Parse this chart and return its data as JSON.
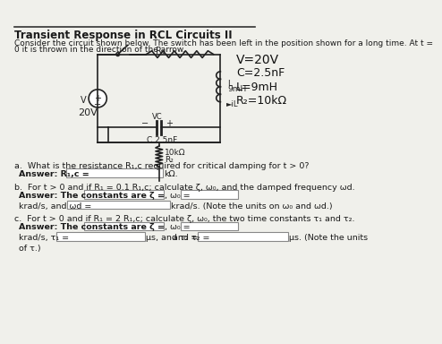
{
  "title": "Transient Response in RCL Circuits II",
  "intro_text": "Consider the circuit shown below. The switch has been left in the position shown for a long time. At t =\n0 it is thrown in the direction of the arrow.",
  "circuit_values_handwritten": [
    "V=20V",
    "C=2.5nF",
    "L=9mH",
    "R₂=10kΩ"
  ],
  "part_a": {
    "text": "a.  What is the resistance R₁,c required for critical damping for t > 0?",
    "answer_label": "Answer: R₁,c =",
    "answer_unit": "kΩ."
  },
  "part_b": {
    "text": "b.  For t > 0 and if R₁ = 0.1 R₁,c; calculate ζ, ω₀, and the damped frequency ωd.",
    "answer_label": "Answer: The constants are ζ =",
    "answer_w0": ", ω₀ =",
    "answer_wd_label": "krad/s, and ωd =",
    "answer_wd_unit": "krad/s. (Note the units on ω₀ and ωd.)"
  },
  "part_c": {
    "text": "c.  For t > 0 and if R₁ = 2 R₁,c; calculate ζ, ω₀, the two time constants τ₁ and τ₂.",
    "answer_label": "Answer: The constants are ζ =",
    "answer_w0": ", ω₀ =",
    "answer_tau1_unit": "μs, and τ₂ =",
    "answer_tau2_unit": "μs. (Note the units",
    "note_last": "of τ.)"
  },
  "bg_color": "#f0f0eb",
  "text_color": "#1a1a1a",
  "input_box_color": "#ffffff",
  "input_box_border": "#888888"
}
